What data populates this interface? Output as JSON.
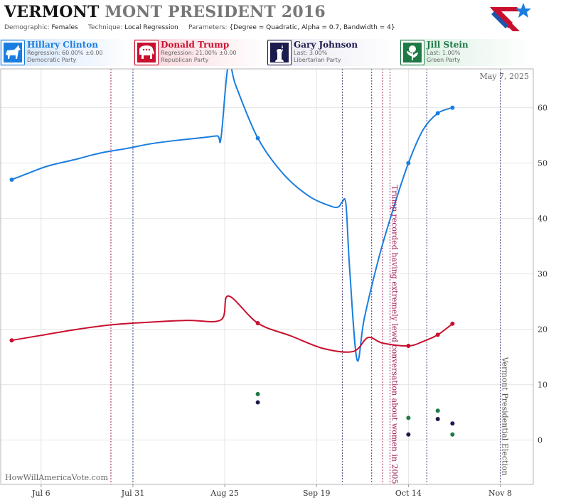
{
  "header": {
    "title_state": "VERMONT",
    "title_rest": "MONT PRESIDENT 2016",
    "demographic_label": "Demographic:",
    "demographic_value": "Females",
    "technique_label": "Technique:",
    "technique_value": "Local Regression",
    "parameters_label": "Parameters:",
    "parameters_value": "{Degree = Quadratic, Alpha = 0.7, Bandwidth = 4}"
  },
  "legend": [
    {
      "name": "Hillary Clinton",
      "line1": "Regression: 60.00% ±0.00",
      "line2": "Democratic Party",
      "color": "#1a7ee0",
      "icon": "donkey-icon"
    },
    {
      "name": "Donald Trump",
      "line1": "Regression: 21.00% ±0.00",
      "line2": "Republican Party",
      "color": "#c8102e",
      "icon": "elephant-icon"
    },
    {
      "name": "Gary Johnson",
      "line1": "Last: 3.00%",
      "line2": "Libertarian Party",
      "color": "#1b1b4d",
      "icon": "liberty-statue-icon"
    },
    {
      "name": "Jill Stein",
      "line1": "Last: 1.00%",
      "line2": "Green Party",
      "color": "#1e7a45",
      "icon": "rose-icon"
    }
  ],
  "chart_data": {
    "type": "line",
    "date_label": "May 7, 2025",
    "watermark": "HowWillAmericaVote.com",
    "x_range": [
      "2016-06-25",
      "2016-11-17"
    ],
    "ylim": [
      -8,
      67
    ],
    "y_ticks": [
      0,
      10,
      20,
      30,
      40,
      50,
      60
    ],
    "x_ticks": [
      {
        "date": "2016-07-06",
        "label": "Jul 6"
      },
      {
        "date": "2016-07-31",
        "label": "Jul 31"
      },
      {
        "date": "2016-08-25",
        "label": "Aug 25"
      },
      {
        "date": "2016-09-19",
        "label": "Sep 19"
      },
      {
        "date": "2016-10-14",
        "label": "Oct 14"
      },
      {
        "date": "2016-11-08",
        "label": "Nov 8"
      }
    ],
    "series": [
      {
        "name": "Hillary Clinton",
        "color": "#1a7ee0",
        "curve": [
          [
            "2016-06-28",
            47
          ],
          [
            "2016-07-03",
            48.3
          ],
          [
            "2016-07-08",
            49.5
          ],
          [
            "2016-07-15",
            50.6
          ],
          [
            "2016-07-22",
            51.8
          ],
          [
            "2016-07-29",
            52.6
          ],
          [
            "2016-08-05",
            53.5
          ],
          [
            "2016-08-12",
            54.1
          ],
          [
            "2016-08-19",
            54.6
          ],
          [
            "2016-08-23",
            54.9
          ],
          [
            "2016-08-24",
            54.6
          ],
          [
            "2016-08-26",
            68
          ],
          [
            "2016-08-28",
            64
          ],
          [
            "2016-09-03",
            54.5
          ],
          [
            "2016-09-10",
            48
          ],
          [
            "2016-09-17",
            44
          ],
          [
            "2016-09-23",
            42.2
          ],
          [
            "2016-09-25",
            42.1
          ],
          [
            "2016-09-26",
            43
          ],
          [
            "2016-09-27",
            42.5
          ],
          [
            "2016-09-28",
            31
          ],
          [
            "2016-09-30",
            14.5
          ],
          [
            "2016-10-02",
            22
          ],
          [
            "2016-10-06",
            33
          ],
          [
            "2016-10-10",
            42
          ],
          [
            "2016-10-14",
            50
          ],
          [
            "2016-10-18",
            56
          ],
          [
            "2016-10-22",
            59
          ],
          [
            "2016-10-26",
            60
          ]
        ],
        "points": [
          [
            "2016-06-28",
            47
          ],
          [
            "2016-09-03",
            54.5
          ],
          [
            "2016-10-14",
            50
          ],
          [
            "2016-10-22",
            59
          ],
          [
            "2016-10-26",
            60
          ]
        ]
      },
      {
        "name": "Donald Trump",
        "color": "#c8102e",
        "curve": [
          [
            "2016-06-28",
            18
          ],
          [
            "2016-07-06",
            18.9
          ],
          [
            "2016-07-15",
            19.9
          ],
          [
            "2016-07-25",
            20.8
          ],
          [
            "2016-08-05",
            21.3
          ],
          [
            "2016-08-15",
            21.6
          ],
          [
            "2016-08-24",
            21.7
          ],
          [
            "2016-08-26",
            26
          ],
          [
            "2016-09-03",
            21.1
          ],
          [
            "2016-09-12",
            18.8
          ],
          [
            "2016-09-21",
            16.5
          ],
          [
            "2016-09-29",
            16
          ],
          [
            "2016-10-03",
            18.5
          ],
          [
            "2016-10-07",
            17.5
          ],
          [
            "2016-10-14",
            17
          ],
          [
            "2016-10-18",
            17.8
          ],
          [
            "2016-10-22",
            19
          ],
          [
            "2016-10-26",
            21
          ]
        ],
        "points": [
          [
            "2016-06-28",
            18
          ],
          [
            "2016-09-03",
            21.1
          ],
          [
            "2016-10-14",
            17
          ],
          [
            "2016-10-22",
            19
          ],
          [
            "2016-10-26",
            21
          ]
        ]
      },
      {
        "name": "Gary Johnson",
        "color": "#1b1b4d",
        "curve": [],
        "points": [
          [
            "2016-09-03",
            6.8
          ],
          [
            "2016-10-14",
            1
          ],
          [
            "2016-10-22",
            3.8
          ],
          [
            "2016-10-26",
            3
          ]
        ]
      },
      {
        "name": "Jill Stein",
        "color": "#1e7a45",
        "curve": [],
        "points": [
          [
            "2016-09-03",
            8.3
          ],
          [
            "2016-10-14",
            4
          ],
          [
            "2016-10-22",
            5.3
          ],
          [
            "2016-10-26",
            1
          ]
        ]
      }
    ],
    "event_lines": [
      {
        "date": "2016-07-25",
        "color": "#a0205a"
      },
      {
        "date": "2016-07-31",
        "color": "#2a4a8c"
      },
      {
        "date": "2016-09-26",
        "color": "#4a3a7a"
      },
      {
        "date": "2016-10-04",
        "color": "#4a3a7a"
      },
      {
        "date": "2016-10-07",
        "color": "#a0205a"
      },
      {
        "date": "2016-10-09",
        "color": "#a0205a"
      },
      {
        "date": "2016-10-19",
        "color": "#4a3a7a"
      },
      {
        "date": "2016-11-08",
        "color": "#4a3a7a"
      }
    ],
    "annotations": [
      {
        "date": "2016-10-09",
        "text": "Trump recorded having extremely lewd conversation about women in 2005",
        "color": "#a0205a",
        "y_top": 46
      },
      {
        "date": "2016-11-08",
        "text": "Vermont Presidential Election",
        "color": "#555555",
        "y_top": 15
      }
    ]
  }
}
